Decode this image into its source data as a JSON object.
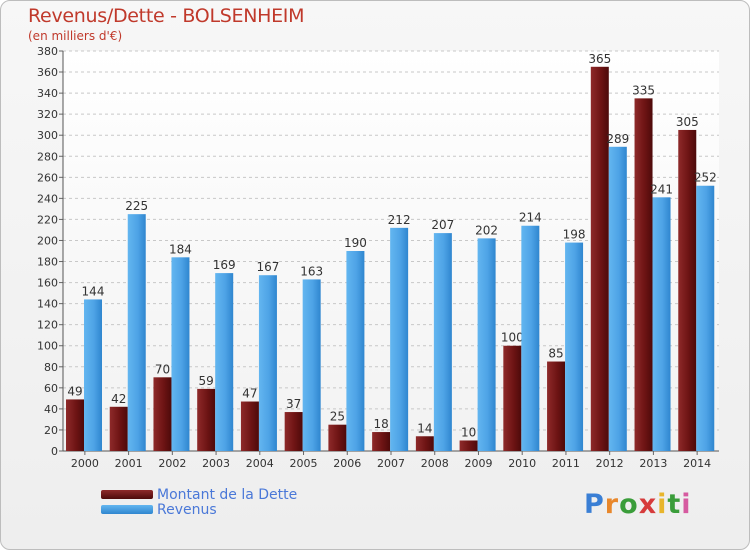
{
  "chart_data": {
    "type": "bar",
    "title": "Revenus/Dette - BOLSENHEIM",
    "subtitle": "(en milliers d'€)",
    "categories": [
      "2000",
      "2001",
      "2002",
      "2003",
      "2004",
      "2005",
      "2006",
      "2007",
      "2008",
      "2009",
      "2010",
      "2011",
      "2012",
      "2013",
      "2014"
    ],
    "series": [
      {
        "name": "Montant de la Dette",
        "color": "#7a1d1d",
        "values": [
          49,
          42,
          70,
          59,
          47,
          37,
          25,
          18,
          14,
          10,
          100,
          85,
          365,
          335,
          305
        ]
      },
      {
        "name": "Revenus",
        "color": "#4ea3e6",
        "values": [
          144,
          225,
          184,
          169,
          167,
          163,
          190,
          212,
          207,
          202,
          214,
          198,
          289,
          241,
          252
        ]
      }
    ],
    "ylim": [
      0,
      380
    ],
    "ytick_step": 20,
    "grid": true,
    "legend_position": "bottom-left"
  },
  "logo": {
    "letters": [
      "P",
      "r",
      "o",
      "x",
      "i",
      "t",
      "i"
    ],
    "colors": [
      "#3a7fd5",
      "#e8872b",
      "#3a9d3a",
      "#d63b3b",
      "#e8b52b",
      "#3a9d3a",
      "#d65aa0"
    ]
  }
}
